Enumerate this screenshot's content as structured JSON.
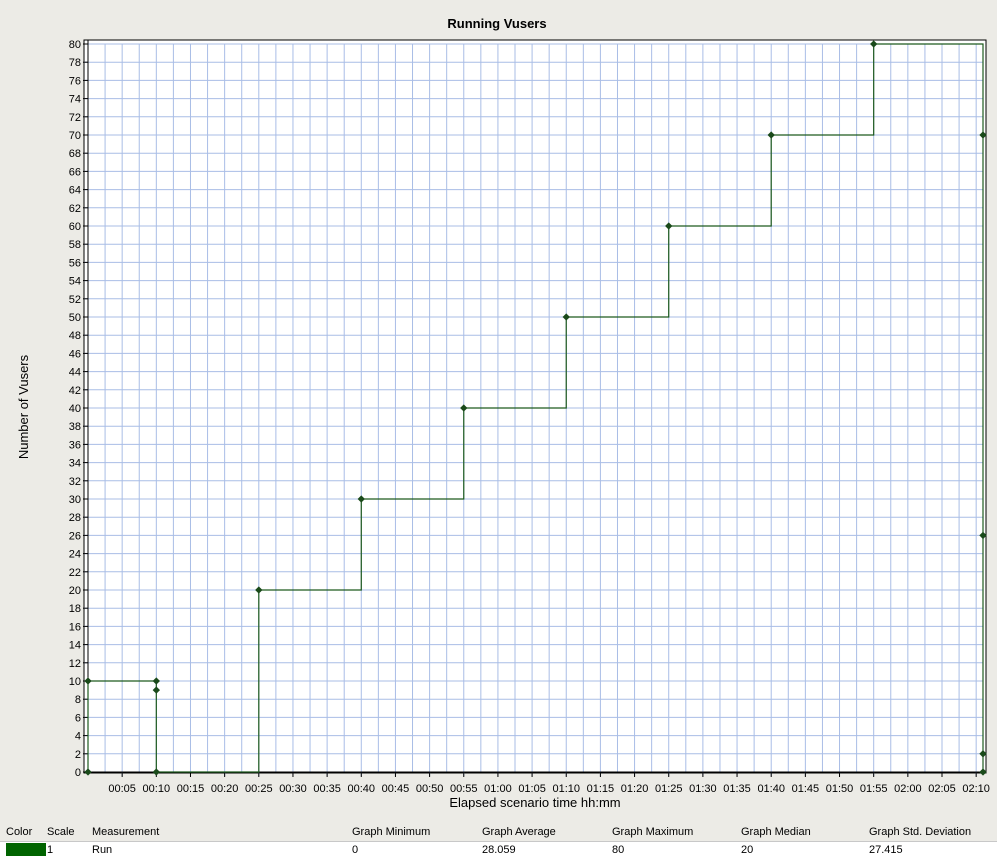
{
  "chart_data": {
    "type": "line",
    "title": "Running Vusers",
    "xlabel": "Elapsed scenario time hh:mm",
    "ylabel": "Number of Vusers",
    "ylim": [
      0,
      80
    ],
    "y_tick_step": 2,
    "xlim_minutes": [
      0,
      131
    ],
    "x_tick_labels": [
      "00:05",
      "00:10",
      "00:15",
      "00:20",
      "00:25",
      "00:30",
      "00:35",
      "00:40",
      "00:45",
      "00:50",
      "00:55",
      "01:00",
      "01:05",
      "01:10",
      "01:15",
      "01:20",
      "01:25",
      "01:30",
      "01:35",
      "01:40",
      "01:45",
      "01:50",
      "01:55",
      "02:00",
      "02:05",
      "02:10"
    ],
    "grid": true,
    "line_color": "#1d5a1d",
    "marker_color": "#1a4a1a",
    "series": [
      {
        "name": "Run",
        "points": [
          {
            "x": "00:00",
            "y": 0
          },
          {
            "x": "00:00",
            "y": 10
          },
          {
            "x": "00:10",
            "y": 10
          },
          {
            "x": "00:10",
            "y": 9
          },
          {
            "x": "00:10",
            "y": 0
          },
          {
            "x": "00:25",
            "y": 20
          },
          {
            "x": "00:40",
            "y": 30
          },
          {
            "x": "00:55",
            "y": 40
          },
          {
            "x": "01:10",
            "y": 50
          },
          {
            "x": "01:25",
            "y": 60
          },
          {
            "x": "01:40",
            "y": 70
          },
          {
            "x": "01:55",
            "y": 80
          },
          {
            "x": "02:11",
            "y": 70
          },
          {
            "x": "02:11",
            "y": 26
          },
          {
            "x": "02:11",
            "y": 2
          },
          {
            "x": "02:11",
            "y": 0
          }
        ]
      }
    ]
  },
  "legend": {
    "headers": {
      "color": "Color",
      "scale": "Scale",
      "measurement": "Measurement",
      "min": "Graph Minimum",
      "avg": "Graph Average",
      "max": "Graph Maximum",
      "median": "Graph Median",
      "std": "Graph Std. Deviation"
    },
    "row": {
      "color": "#006400",
      "scale": "1",
      "measurement": "Run",
      "min": "0",
      "avg": "28.059",
      "max": "80",
      "median": "20",
      "std": "27.415"
    }
  }
}
